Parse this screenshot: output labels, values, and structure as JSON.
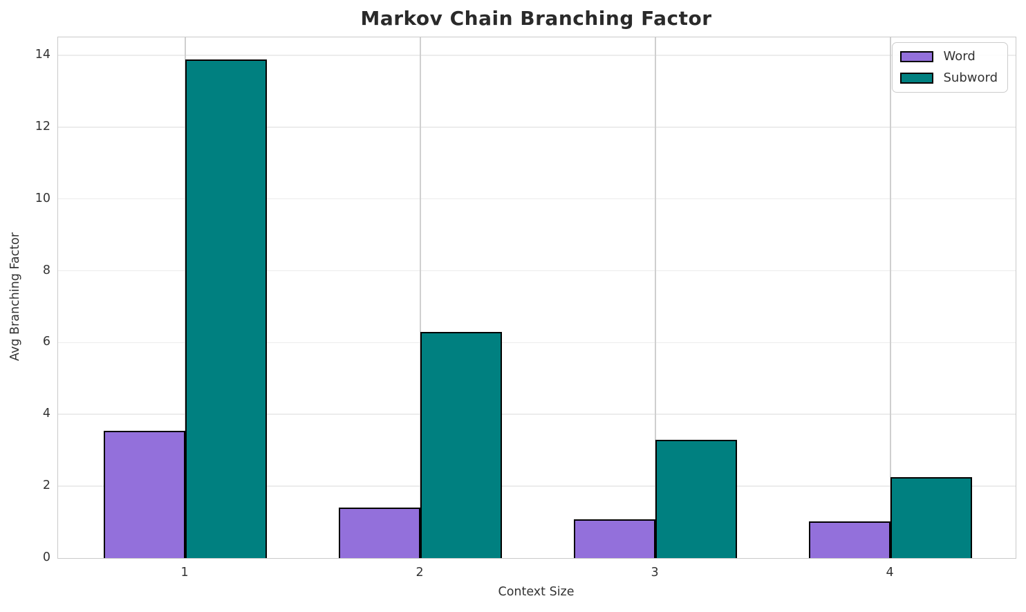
{
  "chart_data": {
    "type": "bar",
    "title": "Markov Chain Branching Factor",
    "xlabel": "Context Size",
    "ylabel": "Avg Branching Factor",
    "categories": [
      "1",
      "2",
      "3",
      "4"
    ],
    "series": [
      {
        "name": "Word",
        "color": "#9370DB",
        "values": [
          3.55,
          1.4,
          1.07,
          1.02
        ]
      },
      {
        "name": "Subword",
        "color": "#008080",
        "values": [
          13.88,
          6.29,
          3.3,
          2.26
        ]
      }
    ],
    "ylim": [
      0,
      14.5
    ],
    "yticks": [
      0,
      2,
      4,
      6,
      8,
      10,
      12,
      14
    ],
    "grid": true,
    "legend_position": "upper right",
    "bar_edge_color": "#000000",
    "grid_color_horizontal": "#ececec",
    "grid_color_vertical": "#cfcfcf"
  }
}
